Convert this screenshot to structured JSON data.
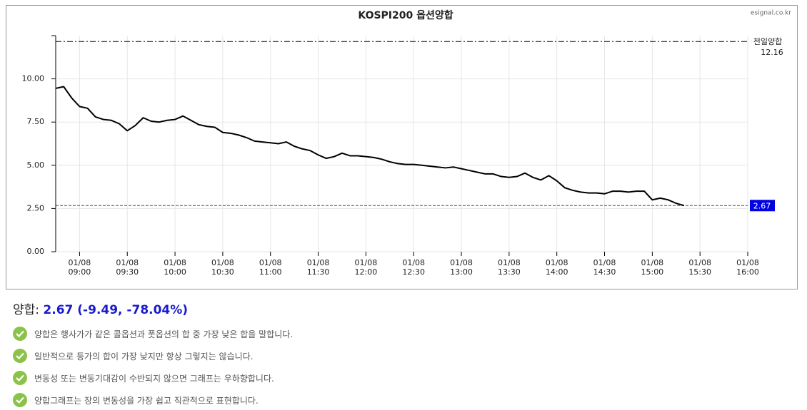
{
  "chart_data": {
    "type": "line",
    "title": "KOSPI200 옵션양합",
    "source": "esignal.co.kr",
    "x": [
      "01/08 08:45",
      "01/08 08:50",
      "01/08 08:55",
      "01/08 09:00",
      "01/08 09:05",
      "01/08 09:10",
      "01/08 09:15",
      "01/08 09:20",
      "01/08 09:25",
      "01/08 09:30",
      "01/08 09:35",
      "01/08 09:40",
      "01/08 09:45",
      "01/08 09:50",
      "01/08 09:55",
      "01/08 10:00",
      "01/08 10:05",
      "01/08 10:10",
      "01/08 10:15",
      "01/08 10:20",
      "01/08 10:25",
      "01/08 10:30",
      "01/08 10:35",
      "01/08 10:40",
      "01/08 10:45",
      "01/08 10:50",
      "01/08 10:55",
      "01/08 11:00",
      "01/08 11:05",
      "01/08 11:10",
      "01/08 11:15",
      "01/08 11:20",
      "01/08 11:25",
      "01/08 11:30",
      "01/08 11:35",
      "01/08 11:40",
      "01/08 11:45",
      "01/08 11:50",
      "01/08 11:55",
      "01/08 12:00",
      "01/08 12:05",
      "01/08 12:10",
      "01/08 12:15",
      "01/08 12:20",
      "01/08 12:25",
      "01/08 12:30",
      "01/08 12:35",
      "01/08 12:40",
      "01/08 12:45",
      "01/08 12:50",
      "01/08 12:55",
      "01/08 13:00",
      "01/08 13:05",
      "01/08 13:10",
      "01/08 13:15",
      "01/08 13:20",
      "01/08 13:25",
      "01/08 13:30",
      "01/08 13:35",
      "01/08 13:40",
      "01/08 13:45",
      "01/08 13:50",
      "01/08 13:55",
      "01/08 14:00",
      "01/08 14:05",
      "01/08 14:10",
      "01/08 14:15",
      "01/08 14:20",
      "01/08 14:25",
      "01/08 14:30",
      "01/08 14:35",
      "01/08 14:40",
      "01/08 14:45",
      "01/08 14:50",
      "01/08 14:55",
      "01/08 15:00",
      "01/08 15:05",
      "01/08 15:10",
      "01/08 15:15",
      "01/08 15:20"
    ],
    "values": [
      9.45,
      9.55,
      8.9,
      8.4,
      8.3,
      7.8,
      7.65,
      7.6,
      7.4,
      7.0,
      7.3,
      7.75,
      7.55,
      7.5,
      7.6,
      7.65,
      7.85,
      7.6,
      7.35,
      7.25,
      7.2,
      6.9,
      6.85,
      6.75,
      6.6,
      6.4,
      6.35,
      6.3,
      6.25,
      6.35,
      6.1,
      5.95,
      5.85,
      5.6,
      5.4,
      5.5,
      5.7,
      5.55,
      5.55,
      5.5,
      5.45,
      5.35,
      5.2,
      5.1,
      5.05,
      5.05,
      5.0,
      4.95,
      4.9,
      4.85,
      4.9,
      4.8,
      4.7,
      4.6,
      4.5,
      4.5,
      4.35,
      4.3,
      4.35,
      4.55,
      4.3,
      4.15,
      4.4,
      4.1,
      3.7,
      3.55,
      3.45,
      3.4,
      3.4,
      3.35,
      3.5,
      3.5,
      3.45,
      3.5,
      3.5,
      3.0,
      3.1,
      3.0,
      2.8,
      2.67
    ],
    "color": "#000000",
    "xlim": [
      "01/08 08:45",
      "01/08 16:00"
    ],
    "xticks": [
      "01/08 09:00",
      "01/08 09:30",
      "01/08 10:00",
      "01/08 10:30",
      "01/08 11:00",
      "01/08 11:30",
      "01/08 12:00",
      "01/08 12:30",
      "01/08 13:00",
      "01/08 13:30",
      "01/08 14:00",
      "01/08 14:30",
      "01/08 15:00",
      "01/08 15:30",
      "01/08 16:00"
    ],
    "ylim": [
      0,
      12.5
    ],
    "yticks": [
      {
        "value": 0,
        "label": "0.00"
      },
      {
        "value": 2.5,
        "label": "2.50"
      },
      {
        "value": 5,
        "label": "5.00"
      },
      {
        "value": 7.5,
        "label": "7.50"
      },
      {
        "value": 10,
        "label": "10.00"
      }
    ],
    "grid": true,
    "prev_label": "전일양합",
    "prev_value": 12.16,
    "last_value": 2.67
  },
  "summary": {
    "label": "양합:",
    "value_text": "2.67 (-9.49, -78.04%)"
  },
  "notes": [
    "양합은 행사가가 같은 콜옵션과 풋옵션의 합 중 가장 낮은 합을 말합니다.",
    "일반적으로 등가의 합이 가장 낮지만 항상 그렇지는 않습니다.",
    "변동성 또는 변동기대감이 수반되지 않으면 그래프는 우하향합니다.",
    "양합그래프는 장의 변동성을 가장 쉽고 직관적으로 표현합니다."
  ]
}
